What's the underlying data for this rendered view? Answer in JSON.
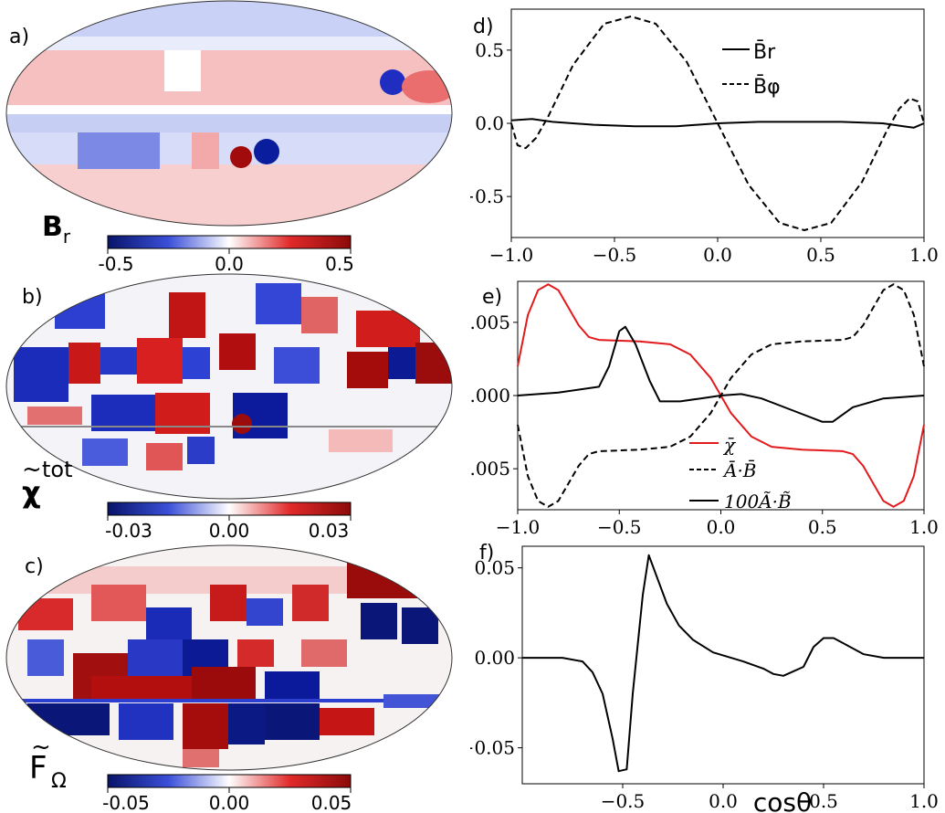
{
  "colors": {
    "negative": "#08146a",
    "positive": "#8c0a0a",
    "mid": "#ffffff",
    "line_black": "#000000",
    "line_red": "#e31a1c"
  },
  "maps": [
    {
      "id": "a",
      "panel_label": "a)",
      "name_main": "B",
      "name_sub": "r",
      "name_sup": "",
      "name_tilde": false,
      "colorbar": {
        "min": -0.5,
        "max": 0.5,
        "ticks": [
          "-0.5",
          "0.0",
          "0.5"
        ]
      }
    },
    {
      "id": "b",
      "panel_label": "b)",
      "name_main": "χ",
      "name_sub": "",
      "name_sup": "tot",
      "name_tilde": true,
      "colorbar": {
        "min": -0.03,
        "max": 0.03,
        "ticks": [
          "-0.03",
          "0.00",
          "0.03"
        ]
      }
    },
    {
      "id": "c",
      "panel_label": "c)",
      "name_main": "F",
      "name_sub": "Ω",
      "name_sup": "",
      "name_tilde": true,
      "colorbar": {
        "min": -0.05,
        "max": 0.05,
        "ticks": [
          "-0.05",
          "0.00",
          "0.05"
        ]
      }
    }
  ],
  "chart_data": [
    {
      "panel_label": "d)",
      "type": "line",
      "xlabel": "",
      "ylabel": "",
      "xlim": [
        -1.0,
        1.0
      ],
      "ylim": [
        -0.78,
        0.78
      ],
      "xticks": [
        "−1.0",
        "−0.5",
        "0.0",
        "0.5",
        "1.0"
      ],
      "yticks": [
        "−0.5",
        "0.0",
        "0.5"
      ],
      "ytick_values": [
        -0.5,
        0.0,
        0.5
      ],
      "legend_position": "top-right",
      "series": [
        {
          "name": "B̄r",
          "style": "solid",
          "color": "#000000",
          "x": [
            -1.0,
            -0.9,
            -0.8,
            -0.6,
            -0.4,
            -0.2,
            0.0,
            0.2,
            0.4,
            0.6,
            0.8,
            0.9,
            0.95,
            1.0
          ],
          "y": [
            0.02,
            0.03,
            0.01,
            -0.01,
            -0.02,
            -0.02,
            0.0,
            0.01,
            0.01,
            0.01,
            0.0,
            -0.02,
            -0.03,
            0.0
          ]
        },
        {
          "name": "B̄φ",
          "style": "dashed",
          "color": "#000000",
          "x": [
            -1.0,
            -0.97,
            -0.93,
            -0.88,
            -0.82,
            -0.7,
            -0.55,
            -0.42,
            -0.3,
            -0.15,
            0.0,
            0.15,
            0.3,
            0.42,
            0.55,
            0.7,
            0.82,
            0.88,
            0.93,
            0.97,
            1.0
          ],
          "y": [
            0.0,
            -0.15,
            -0.17,
            -0.1,
            0.05,
            0.4,
            0.68,
            0.73,
            0.68,
            0.42,
            0.0,
            -0.42,
            -0.68,
            -0.73,
            -0.68,
            -0.4,
            -0.05,
            0.1,
            0.17,
            0.15,
            0.0
          ]
        }
      ]
    },
    {
      "panel_label": "e)",
      "type": "line",
      "xlabel": "",
      "ylabel": "",
      "xlim": [
        -1.0,
        1.0
      ],
      "ylim": [
        -0.0078,
        0.0078
      ],
      "xticks": [
        "−1.0",
        "−0.5",
        "0.0",
        "0.5",
        "1.0"
      ],
      "yticks": [
        "0.005",
        "0.000",
        "−0.005"
      ],
      "ytick_values": [
        0.005,
        0.0,
        -0.005
      ],
      "legend_position": "lower-center",
      "series": [
        {
          "name": "χ̄",
          "style": "solid",
          "color": "#e31a1c",
          "x": [
            -1.0,
            -0.95,
            -0.9,
            -0.85,
            -0.8,
            -0.75,
            -0.7,
            -0.65,
            -0.6,
            -0.4,
            -0.25,
            -0.15,
            -0.05,
            0.05,
            0.15,
            0.25,
            0.4,
            0.6,
            0.65,
            0.7,
            0.75,
            0.8,
            0.85,
            0.9,
            0.95,
            1.0
          ],
          "y": [
            0.002,
            0.0055,
            0.0072,
            0.0076,
            0.0072,
            0.006,
            0.0048,
            0.004,
            0.0038,
            0.0037,
            0.0035,
            0.0028,
            0.0012,
            -0.0012,
            -0.0028,
            -0.0035,
            -0.0037,
            -0.0038,
            -0.004,
            -0.0048,
            -0.006,
            -0.0072,
            -0.0076,
            -0.0072,
            -0.0055,
            -0.002
          ]
        },
        {
          "name": "Ā·B̄",
          "style": "dashed",
          "color": "#000000",
          "x": [
            -1.0,
            -0.95,
            -0.9,
            -0.85,
            -0.8,
            -0.75,
            -0.7,
            -0.65,
            -0.6,
            -0.4,
            -0.25,
            -0.15,
            -0.05,
            0.05,
            0.15,
            0.25,
            0.4,
            0.6,
            0.65,
            0.7,
            0.75,
            0.8,
            0.85,
            0.9,
            0.95,
            1.0
          ],
          "y": [
            -0.002,
            -0.0055,
            -0.0072,
            -0.0076,
            -0.0072,
            -0.006,
            -0.0048,
            -0.004,
            -0.0038,
            -0.0037,
            -0.0035,
            -0.0028,
            -0.0012,
            0.0012,
            0.0028,
            0.0035,
            0.0037,
            0.0038,
            0.004,
            0.0048,
            0.006,
            0.0072,
            0.0076,
            0.0072,
            0.0055,
            0.002
          ]
        },
        {
          "name": "100Ã·B̃",
          "style": "solid",
          "color": "#000000",
          "x": [
            -1.0,
            -0.8,
            -0.6,
            -0.55,
            -0.5,
            -0.47,
            -0.42,
            -0.35,
            -0.3,
            -0.2,
            -0.1,
            0.0,
            0.1,
            0.2,
            0.35,
            0.5,
            0.55,
            0.65,
            0.8,
            1.0
          ],
          "y": [
            0.0,
            0.0002,
            0.0006,
            0.002,
            0.0044,
            0.0047,
            0.0035,
            0.001,
            -0.0004,
            -0.0004,
            -0.0002,
            0.0,
            0.0001,
            -0.0002,
            -0.001,
            -0.0018,
            -0.0018,
            -0.0008,
            -0.0002,
            0.0
          ]
        }
      ]
    },
    {
      "panel_label": "f)",
      "type": "line",
      "xlabel": "cosθ",
      "ylabel": "",
      "xlim": [
        -1.0,
        1.0
      ],
      "ylim": [
        -0.07,
        0.062
      ],
      "xticks": [
        "−0.5",
        "0.0",
        "0.5",
        "1.0"
      ],
      "xtick_values": [
        -0.5,
        0.0,
        0.5,
        1.0
      ],
      "yticks": [
        "0.05",
        "0.00",
        "−0.05"
      ],
      "ytick_values": [
        0.05,
        0.0,
        -0.05
      ],
      "series": [
        {
          "name": "",
          "style": "solid",
          "color": "#000000",
          "x": [
            -1.0,
            -0.8,
            -0.7,
            -0.65,
            -0.6,
            -0.55,
            -0.52,
            -0.48,
            -0.45,
            -0.4,
            -0.37,
            -0.33,
            -0.28,
            -0.22,
            -0.15,
            -0.05,
            0.1,
            0.2,
            0.25,
            0.3,
            0.4,
            0.45,
            0.5,
            0.55,
            0.6,
            0.7,
            0.8,
            1.0
          ],
          "y": [
            0.0,
            0.0,
            -0.002,
            -0.008,
            -0.02,
            -0.045,
            -0.063,
            -0.062,
            -0.02,
            0.035,
            0.057,
            0.045,
            0.03,
            0.018,
            0.01,
            0.003,
            -0.002,
            -0.006,
            -0.009,
            -0.01,
            -0.005,
            0.006,
            0.011,
            0.011,
            0.008,
            0.002,
            0.0,
            0.0
          ]
        }
      ]
    }
  ]
}
